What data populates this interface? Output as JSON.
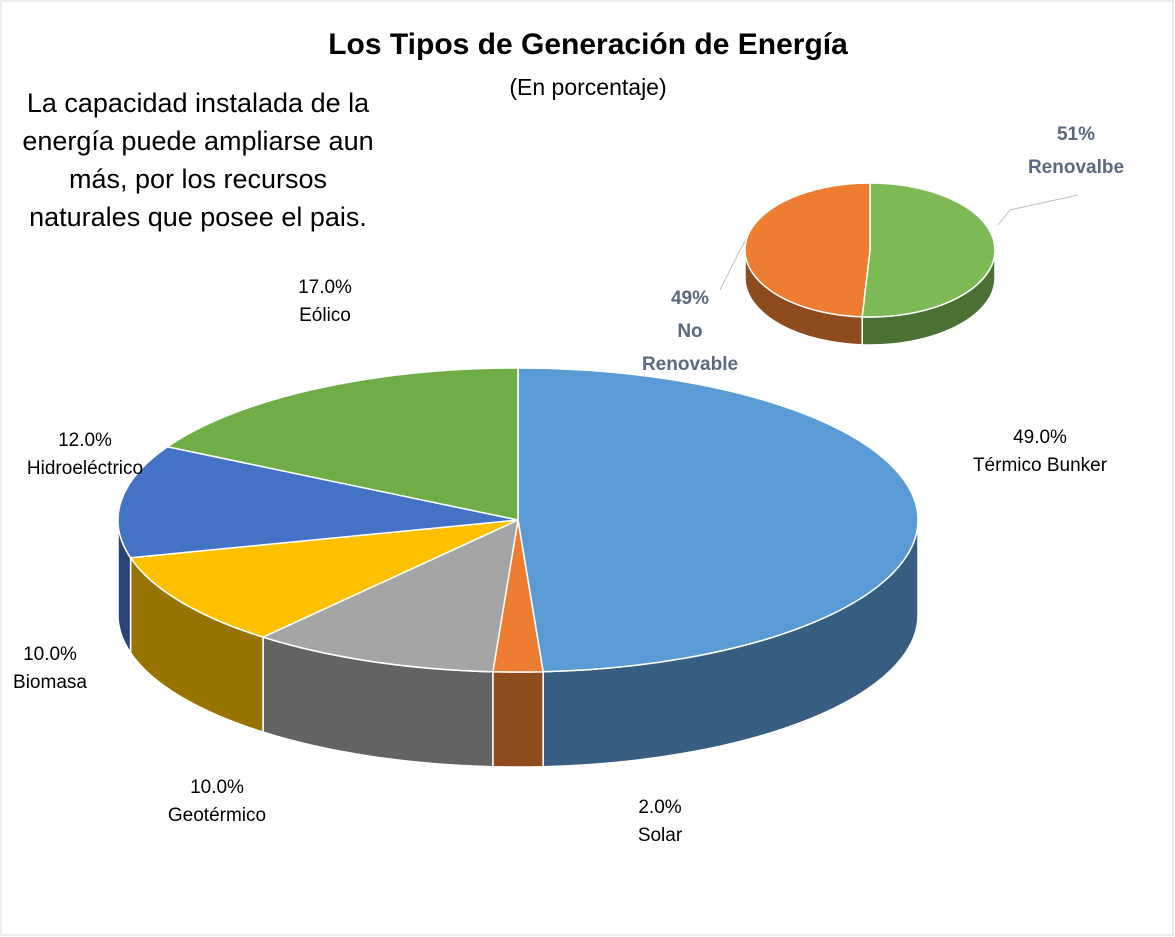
{
  "chart_data": [
    {
      "type": "pie3d",
      "title": "Los Tipos de Generación de Energía",
      "subtitle": "(En porcentaje)",
      "annotation": "La capacidad instalada de la energía puede ampliarse aun más, por los recursos naturales que posee el pais.",
      "categories": [
        "Térmico Bunker",
        "Solar",
        "Geotérmico",
        "Biomasa",
        "Hidroeléctrico",
        "Eólico"
      ],
      "values": [
        49,
        2,
        10,
        10,
        12,
        17
      ],
      "value_labels": [
        "49.0%",
        "2.0%",
        "10.0%",
        "10.0%",
        "12.0%",
        "17.0%"
      ],
      "colors": [
        "#5b9bd5",
        "#ed7d31",
        "#a5a5a5",
        "#ffc000",
        "#4472c4",
        "#70ad47"
      ]
    },
    {
      "type": "pie3d",
      "categories": [
        "Renovalbe",
        "No Renovable"
      ],
      "values": [
        51,
        49
      ],
      "value_labels": [
        "51%",
        "49%"
      ],
      "colors": [
        "#7dba55",
        "#ed7d31"
      ]
    }
  ]
}
